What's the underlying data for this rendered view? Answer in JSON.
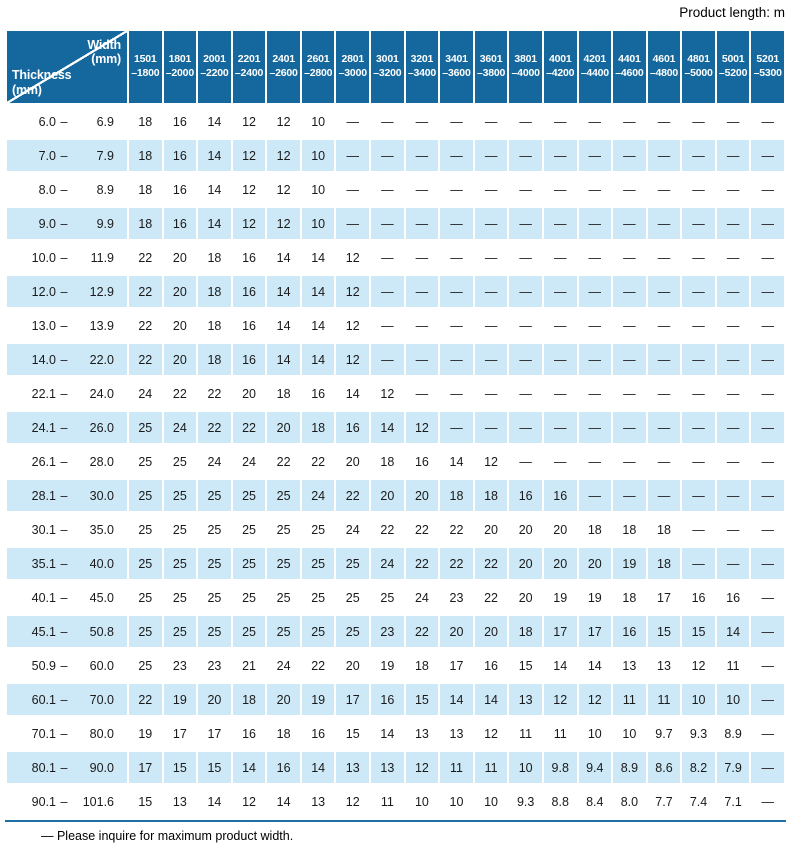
{
  "page": {
    "product_length_label": "Product length: m",
    "footnote": "— Please inquire for maximum product width."
  },
  "colors": {
    "header_blue": "#15689d",
    "row_blue": "#cde9f7",
    "rule_blue": "#1d6fa5"
  },
  "table": {
    "corner_top_right": "Width\n(mm)",
    "corner_bottom_left": "Thickness\n(mm)",
    "range_separator": "–",
    "width_columns": [
      "1501\n–1800",
      "1801\n–2000",
      "2001\n–2200",
      "2201\n–2400",
      "2401\n–2600",
      "2601\n–2800",
      "2801\n–3000",
      "3001\n–3200",
      "3201\n–3400",
      "3401\n–3600",
      "3601\n–3800",
      "3801\n–4000",
      "4001\n–4200",
      "4201\n–4400",
      "4401\n–4600",
      "4601\n–4800",
      "4801\n–5000",
      "5001\n–5200",
      "5201\n–5300"
    ],
    "rows": [
      {
        "min": "6.0",
        "max": "6.9",
        "values": [
          "18",
          "16",
          "14",
          "12",
          "12",
          "10",
          "—",
          "—",
          "—",
          "—",
          "—",
          "—",
          "—",
          "—",
          "—",
          "—",
          "—",
          "—",
          "—"
        ]
      },
      {
        "min": "7.0",
        "max": "7.9",
        "values": [
          "18",
          "16",
          "14",
          "12",
          "12",
          "10",
          "—",
          "—",
          "—",
          "—",
          "—",
          "—",
          "—",
          "—",
          "—",
          "—",
          "—",
          "—",
          "—"
        ]
      },
      {
        "min": "8.0",
        "max": "8.9",
        "values": [
          "18",
          "16",
          "14",
          "12",
          "12",
          "10",
          "—",
          "—",
          "—",
          "—",
          "—",
          "—",
          "—",
          "—",
          "—",
          "—",
          "—",
          "—",
          "—"
        ]
      },
      {
        "min": "9.0",
        "max": "9.9",
        "values": [
          "18",
          "16",
          "14",
          "12",
          "12",
          "10",
          "—",
          "—",
          "—",
          "—",
          "—",
          "—",
          "—",
          "—",
          "—",
          "—",
          "—",
          "—",
          "—"
        ]
      },
      {
        "min": "10.0",
        "max": "11.9",
        "values": [
          "22",
          "20",
          "18",
          "16",
          "14",
          "14",
          "12",
          "—",
          "—",
          "—",
          "—",
          "—",
          "—",
          "—",
          "—",
          "—",
          "—",
          "—",
          "—"
        ]
      },
      {
        "min": "12.0",
        "max": "12.9",
        "values": [
          "22",
          "20",
          "18",
          "16",
          "14",
          "14",
          "12",
          "—",
          "—",
          "—",
          "—",
          "—",
          "—",
          "—",
          "—",
          "—",
          "—",
          "—",
          "—"
        ]
      },
      {
        "min": "13.0",
        "max": "13.9",
        "values": [
          "22",
          "20",
          "18",
          "16",
          "14",
          "14",
          "12",
          "—",
          "—",
          "—",
          "—",
          "—",
          "—",
          "—",
          "—",
          "—",
          "—",
          "—",
          "—"
        ]
      },
      {
        "min": "14.0",
        "max": "22.0",
        "values": [
          "22",
          "20",
          "18",
          "16",
          "14",
          "14",
          "12",
          "—",
          "—",
          "—",
          "—",
          "—",
          "—",
          "—",
          "—",
          "—",
          "—",
          "—",
          "—"
        ]
      },
      {
        "min": "22.1",
        "max": "24.0",
        "values": [
          "24",
          "22",
          "22",
          "20",
          "18",
          "16",
          "14",
          "12",
          "—",
          "—",
          "—",
          "—",
          "—",
          "—",
          "—",
          "—",
          "—",
          "—",
          "—"
        ]
      },
      {
        "min": "24.1",
        "max": "26.0",
        "values": [
          "25",
          "24",
          "22",
          "22",
          "20",
          "18",
          "16",
          "14",
          "12",
          "—",
          "—",
          "—",
          "—",
          "—",
          "—",
          "—",
          "—",
          "—",
          "—"
        ]
      },
      {
        "min": "26.1",
        "max": "28.0",
        "values": [
          "25",
          "25",
          "24",
          "24",
          "22",
          "22",
          "20",
          "18",
          "16",
          "14",
          "12",
          "—",
          "—",
          "—",
          "—",
          "—",
          "—",
          "—",
          "—"
        ]
      },
      {
        "min": "28.1",
        "max": "30.0",
        "values": [
          "25",
          "25",
          "25",
          "25",
          "25",
          "24",
          "22",
          "20",
          "20",
          "18",
          "18",
          "16",
          "16",
          "—",
          "—",
          "—",
          "—",
          "—",
          "—"
        ]
      },
      {
        "min": "30.1",
        "max": "35.0",
        "values": [
          "25",
          "25",
          "25",
          "25",
          "25",
          "25",
          "24",
          "22",
          "22",
          "22",
          "20",
          "20",
          "20",
          "18",
          "18",
          "18",
          "—",
          "—",
          "—"
        ]
      },
      {
        "min": "35.1",
        "max": "40.0",
        "values": [
          "25",
          "25",
          "25",
          "25",
          "25",
          "25",
          "25",
          "24",
          "22",
          "22",
          "22",
          "20",
          "20",
          "20",
          "19",
          "18",
          "—",
          "—",
          "—"
        ]
      },
      {
        "min": "40.1",
        "max": "45.0",
        "values": [
          "25",
          "25",
          "25",
          "25",
          "25",
          "25",
          "25",
          "25",
          "24",
          "23",
          "22",
          "20",
          "19",
          "19",
          "18",
          "17",
          "16",
          "16",
          "—"
        ]
      },
      {
        "min": "45.1",
        "max": "50.8",
        "values": [
          "25",
          "25",
          "25",
          "25",
          "25",
          "25",
          "25",
          "23",
          "22",
          "20",
          "20",
          "18",
          "17",
          "17",
          "16",
          "15",
          "15",
          "14",
          "—"
        ]
      },
      {
        "min": "50.9",
        "max": "60.0",
        "values": [
          "25",
          "23",
          "23",
          "21",
          "24",
          "22",
          "20",
          "19",
          "18",
          "17",
          "16",
          "15",
          "14",
          "14",
          "13",
          "13",
          "12",
          "11",
          "—"
        ]
      },
      {
        "min": "60.1",
        "max": "70.0",
        "values": [
          "22",
          "19",
          "20",
          "18",
          "20",
          "19",
          "17",
          "16",
          "15",
          "14",
          "14",
          "13",
          "12",
          "12",
          "11",
          "11",
          "10",
          "10",
          "—"
        ]
      },
      {
        "min": "70.1",
        "max": "80.0",
        "values": [
          "19",
          "17",
          "17",
          "16",
          "18",
          "16",
          "15",
          "14",
          "13",
          "13",
          "12",
          "11",
          "11",
          "10",
          "10",
          "9.7",
          "9.3",
          "8.9",
          "—"
        ]
      },
      {
        "min": "80.1",
        "max": "90.0",
        "values": [
          "17",
          "15",
          "15",
          "14",
          "16",
          "14",
          "13",
          "13",
          "12",
          "11",
          "11",
          "10",
          "9.8",
          "9.4",
          "8.9",
          "8.6",
          "8.2",
          "7.9",
          "—"
        ]
      },
      {
        "min": "90.1",
        "max": "101.6",
        "values": [
          "15",
          "13",
          "14",
          "12",
          "14",
          "13",
          "12",
          "11",
          "10",
          "10",
          "10",
          "9.3",
          "8.8",
          "8.4",
          "8.0",
          "7.7",
          "7.4",
          "7.1",
          "—"
        ]
      }
    ]
  }
}
